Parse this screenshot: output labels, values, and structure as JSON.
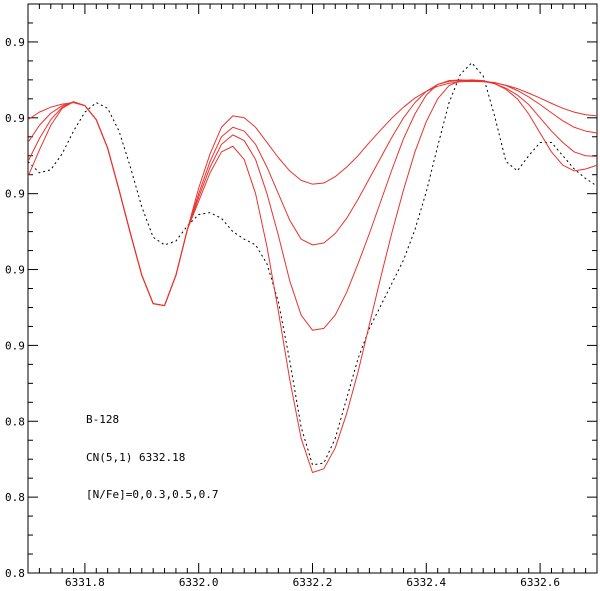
{
  "chart_data": {
    "type": "line",
    "title": "",
    "xlabel": "",
    "ylabel": "",
    "xlim": [
      6331.7,
      6332.7
    ],
    "ylim": [
      0.8,
      0.95
    ],
    "x_ticks": [
      6331.8,
      6332.0,
      6332.2,
      6332.4,
      6332.6
    ],
    "x_tick_labels": [
      "6331.8",
      "6332.0",
      "6332.2",
      "6332.4",
      "6332.6"
    ],
    "y_ticks": [
      0.8,
      0.82,
      0.84,
      0.86,
      0.88,
      0.9,
      0.92,
      0.94
    ],
    "y_tick_labels": [
      "0.8",
      "0.8",
      "0.8",
      "0.9",
      "0.9",
      "0.9",
      "0.9",
      "0.9"
    ],
    "grid": false,
    "annotations": [
      "B-128",
      "CN(5,1) 6332.18",
      "[N/Fe]=0,0.3,0.5,0.7"
    ],
    "colors": {
      "model": "#e8332e",
      "observed": "#000000",
      "axes": "#000000"
    },
    "series": [
      {
        "style": "dotted",
        "color": "#000000",
        "x": [
          6331.7,
          6331.72,
          6331.74,
          6331.76,
          6331.78,
          6331.8,
          6331.82,
          6331.84,
          6331.86,
          6331.88,
          6331.9,
          6331.92,
          6331.94,
          6331.96,
          6331.98,
          6332.0,
          6332.02,
          6332.04,
          6332.06,
          6332.08,
          6332.1,
          6332.12,
          6332.14,
          6332.16,
          6332.18,
          6332.2,
          6332.22,
          6332.24,
          6332.26,
          6332.28,
          6332.3,
          6332.32,
          6332.34,
          6332.36,
          6332.38,
          6332.4,
          6332.42,
          6332.44,
          6332.46,
          6332.48,
          6332.5,
          6332.52,
          6332.54,
          6332.56,
          6332.58,
          6332.6,
          6332.62,
          6332.64,
          6332.66,
          6332.68,
          6332.7
        ],
        "y": [
          0.9085,
          0.9055,
          0.9063,
          0.9105,
          0.9165,
          0.9215,
          0.924,
          0.9225,
          0.9165,
          0.907,
          0.8965,
          0.8885,
          0.8865,
          0.8875,
          0.8915,
          0.8945,
          0.895,
          0.8935,
          0.89,
          0.888,
          0.8865,
          0.8815,
          0.8715,
          0.856,
          0.8385,
          0.8285,
          0.829,
          0.8355,
          0.846,
          0.8565,
          0.8645,
          0.8705,
          0.8765,
          0.8825,
          0.8905,
          0.9005,
          0.9125,
          0.924,
          0.9315,
          0.9345,
          0.931,
          0.9205,
          0.9085,
          0.906,
          0.91,
          0.9135,
          0.9135,
          0.91,
          0.9065,
          0.904,
          0.902
        ]
      },
      {
        "name": "[N/Fe]=0",
        "color": "#e8332e",
        "x": [
          6331.7,
          6331.72,
          6331.74,
          6331.76,
          6331.78,
          6331.8,
          6331.82,
          6331.84,
          6331.86,
          6331.88,
          6331.9,
          6331.92,
          6331.94,
          6331.96,
          6331.98,
          6332.0,
          6332.02,
          6332.04,
          6332.06,
          6332.08,
          6332.1,
          6332.12,
          6332.14,
          6332.16,
          6332.18,
          6332.2,
          6332.22,
          6332.24,
          6332.26,
          6332.28,
          6332.3,
          6332.32,
          6332.34,
          6332.36,
          6332.38,
          6332.4,
          6332.42,
          6332.44,
          6332.46,
          6332.48,
          6332.5,
          6332.52,
          6332.54,
          6332.56,
          6332.58,
          6332.6,
          6332.62,
          6332.64,
          6332.66,
          6332.68,
          6332.7
        ],
        "y": [
          0.9195,
          0.9215,
          0.9228,
          0.9236,
          0.924,
          0.9232,
          0.9195,
          0.912,
          0.901,
          0.8895,
          0.8785,
          0.871,
          0.8705,
          0.8785,
          0.8905,
          0.9015,
          0.9105,
          0.9175,
          0.9205,
          0.92,
          0.9175,
          0.9135,
          0.9095,
          0.906,
          0.9035,
          0.9025,
          0.9028,
          0.9045,
          0.907,
          0.91,
          0.9135,
          0.9168,
          0.92,
          0.9228,
          0.9252,
          0.927,
          0.9283,
          0.9291,
          0.9295,
          0.9296,
          0.9295,
          0.9292,
          0.9286,
          0.9277,
          0.9265,
          0.9252,
          0.9238,
          0.9225,
          0.9215,
          0.9208,
          0.9205
        ]
      },
      {
        "name": "[N/Fe]=0.3",
        "color": "#e8332e",
        "x": [
          6331.7,
          6331.72,
          6331.74,
          6331.76,
          6331.78,
          6331.8,
          6331.82,
          6331.84,
          6331.86,
          6331.88,
          6331.9,
          6331.92,
          6331.94,
          6331.96,
          6331.98,
          6332.0,
          6332.02,
          6332.04,
          6332.06,
          6332.08,
          6332.1,
          6332.12,
          6332.14,
          6332.16,
          6332.18,
          6332.2,
          6332.22,
          6332.24,
          6332.26,
          6332.28,
          6332.3,
          6332.32,
          6332.34,
          6332.36,
          6332.38,
          6332.4,
          6332.42,
          6332.44,
          6332.46,
          6332.48,
          6332.5,
          6332.52,
          6332.54,
          6332.56,
          6332.58,
          6332.6,
          6332.62,
          6332.64,
          6332.66,
          6332.68,
          6332.7
        ],
        "y": [
          0.9135,
          0.918,
          0.9212,
          0.9232,
          0.9242,
          0.9232,
          0.9195,
          0.912,
          0.901,
          0.8895,
          0.8785,
          0.871,
          0.8705,
          0.8785,
          0.8905,
          0.9,
          0.9085,
          0.915,
          0.9175,
          0.9165,
          0.913,
          0.907,
          0.9,
          0.893,
          0.888,
          0.8865,
          0.887,
          0.8895,
          0.8935,
          0.8985,
          0.904,
          0.9095,
          0.915,
          0.92,
          0.924,
          0.927,
          0.9288,
          0.9296,
          0.9298,
          0.9297,
          0.9296,
          0.9293,
          0.9285,
          0.9272,
          0.9255,
          0.9235,
          0.9213,
          0.9192,
          0.9175,
          0.9165,
          0.916
        ]
      },
      {
        "name": "[N/Fe]=0.5",
        "color": "#e8332e",
        "x": [
          6331.7,
          6331.72,
          6331.74,
          6331.76,
          6331.78,
          6331.8,
          6331.82,
          6331.84,
          6331.86,
          6331.88,
          6331.9,
          6331.92,
          6331.94,
          6331.96,
          6331.98,
          6332.0,
          6332.02,
          6332.04,
          6332.06,
          6332.08,
          6332.1,
          6332.12,
          6332.14,
          6332.16,
          6332.18,
          6332.2,
          6332.22,
          6332.24,
          6332.26,
          6332.28,
          6332.3,
          6332.32,
          6332.34,
          6332.36,
          6332.38,
          6332.4,
          6332.42,
          6332.44,
          6332.46,
          6332.48,
          6332.5,
          6332.52,
          6332.54,
          6332.56,
          6332.58,
          6332.6,
          6332.62,
          6332.64,
          6332.66,
          6332.68,
          6332.7
        ],
        "y": [
          0.9085,
          0.9145,
          0.9195,
          0.9228,
          0.9242,
          0.9232,
          0.9195,
          0.912,
          0.901,
          0.8895,
          0.8785,
          0.871,
          0.8705,
          0.8785,
          0.8905,
          0.899,
          0.907,
          0.913,
          0.9155,
          0.914,
          0.909,
          0.9,
          0.889,
          0.877,
          0.868,
          0.864,
          0.8645,
          0.868,
          0.874,
          0.8815,
          0.8895,
          0.898,
          0.9065,
          0.9145,
          0.921,
          0.926,
          0.9288,
          0.9298,
          0.93,
          0.9298,
          0.9296,
          0.929,
          0.9278,
          0.926,
          0.9235,
          0.92,
          0.9165,
          0.9135,
          0.911,
          0.91,
          0.9098
        ]
      },
      {
        "name": "[N/Fe]=0.7",
        "color": "#e8332e",
        "x": [
          6331.7,
          6331.72,
          6331.74,
          6331.76,
          6331.78,
          6331.8,
          6331.82,
          6331.84,
          6331.86,
          6331.88,
          6331.9,
          6331.92,
          6331.94,
          6331.96,
          6331.98,
          6332.0,
          6332.02,
          6332.04,
          6332.06,
          6332.08,
          6332.1,
          6332.12,
          6332.14,
          6332.16,
          6332.18,
          6332.2,
          6332.22,
          6332.24,
          6332.26,
          6332.28,
          6332.3,
          6332.32,
          6332.34,
          6332.36,
          6332.38,
          6332.4,
          6332.42,
          6332.44,
          6332.46,
          6332.48,
          6332.5,
          6332.52,
          6332.54,
          6332.56,
          6332.58,
          6332.6,
          6332.62,
          6332.64,
          6332.66,
          6332.68,
          6332.7
        ],
        "y": [
          0.9045,
          0.9115,
          0.918,
          0.9225,
          0.9242,
          0.9232,
          0.9195,
          0.912,
          0.901,
          0.8895,
          0.8785,
          0.871,
          0.8705,
          0.8785,
          0.8905,
          0.898,
          0.9055,
          0.911,
          0.9125,
          0.909,
          0.9,
          0.886,
          0.869,
          0.851,
          0.8355,
          0.8265,
          0.8275,
          0.833,
          0.842,
          0.853,
          0.8655,
          0.878,
          0.89,
          0.901,
          0.911,
          0.919,
          0.925,
          0.9285,
          0.9298,
          0.93,
          0.9298,
          0.929,
          0.9275,
          0.925,
          0.921,
          0.916,
          0.911,
          0.9075,
          0.906,
          0.9065,
          0.9075
        ]
      }
    ]
  }
}
